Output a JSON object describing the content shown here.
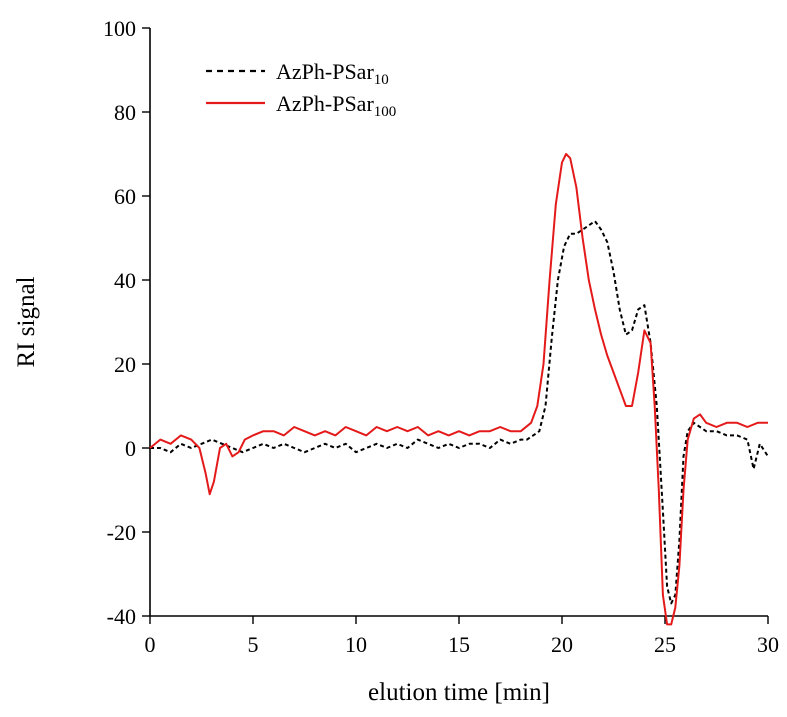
{
  "chart_data": {
    "type": "line",
    "title": "",
    "xlabel": "elution time [min]",
    "ylabel": "RI signal",
    "xlim": [
      0,
      30
    ],
    "ylim": [
      -40,
      100
    ],
    "xticks": [
      0,
      5,
      10,
      15,
      20,
      25,
      30
    ],
    "yticks": [
      100,
      80,
      60,
      40,
      20,
      0,
      -20,
      -40
    ],
    "xtick_labels": [
      "0",
      "5",
      "10",
      "15",
      "20",
      "25",
      "30"
    ],
    "ytick_labels": [
      "100",
      "80",
      "60",
      "40",
      "20",
      "0",
      "-20",
      "-40"
    ],
    "grid": false,
    "legend_position": "top-left",
    "series": [
      {
        "name": "AzPh-PSar10",
        "legend_base": "AzPh-PSar",
        "legend_sub": "10",
        "color": "#000000",
        "line_style": "dashed",
        "x": [
          0,
          0.5,
          1,
          1.5,
          2,
          2.5,
          3,
          3.5,
          4,
          4.5,
          5,
          5.5,
          6,
          6.5,
          7,
          7.5,
          8,
          8.5,
          9,
          9.5,
          10,
          10.5,
          11,
          11.5,
          12,
          12.5,
          13,
          13.5,
          14,
          14.5,
          15,
          15.5,
          16,
          16.5,
          17,
          17.5,
          18,
          18.3,
          18.6,
          18.9,
          19.2,
          19.5,
          19.8,
          20.1,
          20.4,
          20.7,
          21,
          21.3,
          21.6,
          21.9,
          22.2,
          22.5,
          22.8,
          23.1,
          23.4,
          23.7,
          24,
          24.3,
          24.6,
          24.9,
          25.1,
          25.3,
          25.5,
          25.7,
          25.9,
          26.1,
          26.4,
          26.7,
          27,
          27.5,
          28,
          28.5,
          29,
          29.3,
          29.6,
          30
        ],
        "y": [
          0,
          0,
          -1,
          1,
          0,
          1,
          2,
          1,
          0,
          -1,
          0,
          1,
          0,
          1,
          0,
          -1,
          0,
          1,
          0,
          1,
          -1,
          0,
          1,
          0,
          1,
          0,
          2,
          1,
          0,
          1,
          0,
          1,
          1,
          0,
          2,
          1,
          2,
          2,
          3,
          4,
          10,
          26,
          40,
          48,
          51,
          51,
          52,
          53,
          54,
          52,
          49,
          42,
          33,
          27,
          28,
          33,
          34,
          25,
          10,
          -15,
          -33,
          -37,
          -35,
          -22,
          -2,
          4,
          6,
          5,
          4,
          4,
          3,
          3,
          2,
          -5,
          1,
          -2
        ]
      },
      {
        "name": "AzPh-PSar100",
        "legend_base": "AzPh-PSar",
        "legend_sub": "100",
        "color": "#e41a1a",
        "line_style": "solid",
        "x": [
          0,
          0.5,
          1,
          1.5,
          2,
          2.4,
          2.7,
          2.9,
          3.1,
          3.4,
          3.7,
          4,
          4.3,
          4.6,
          5,
          5.5,
          6,
          6.5,
          7,
          7.5,
          8,
          8.5,
          9,
          9.5,
          10,
          10.5,
          11,
          11.5,
          12,
          12.5,
          13,
          13.5,
          14,
          14.5,
          15,
          15.5,
          16,
          16.5,
          17,
          17.5,
          18,
          18.5,
          18.8,
          19.1,
          19.4,
          19.7,
          20,
          20.2,
          20.4,
          20.7,
          21,
          21.3,
          21.6,
          21.9,
          22.2,
          22.5,
          22.8,
          23.1,
          23.4,
          23.7,
          24,
          24.3,
          24.5,
          24.7,
          24.9,
          25.1,
          25.3,
          25.5,
          25.7,
          25.9,
          26.1,
          26.4,
          26.7,
          27,
          27.5,
          28,
          28.5,
          29,
          29.5,
          30
        ],
        "y": [
          0,
          2,
          1,
          3,
          2,
          0,
          -6,
          -11,
          -8,
          0,
          1,
          -2,
          -1,
          2,
          3,
          4,
          4,
          3,
          5,
          4,
          3,
          4,
          3,
          5,
          4,
          3,
          5,
          4,
          5,
          4,
          5,
          3,
          4,
          3,
          4,
          3,
          4,
          4,
          5,
          4,
          4,
          6,
          10,
          20,
          40,
          58,
          68,
          70,
          69,
          62,
          50,
          40,
          33,
          27,
          22,
          18,
          14,
          10,
          10,
          18,
          28,
          25,
          10,
          -10,
          -35,
          -42,
          -42,
          -38,
          -28,
          -10,
          2,
          7,
          8,
          6,
          5,
          6,
          6,
          5,
          6,
          6
        ]
      }
    ]
  }
}
